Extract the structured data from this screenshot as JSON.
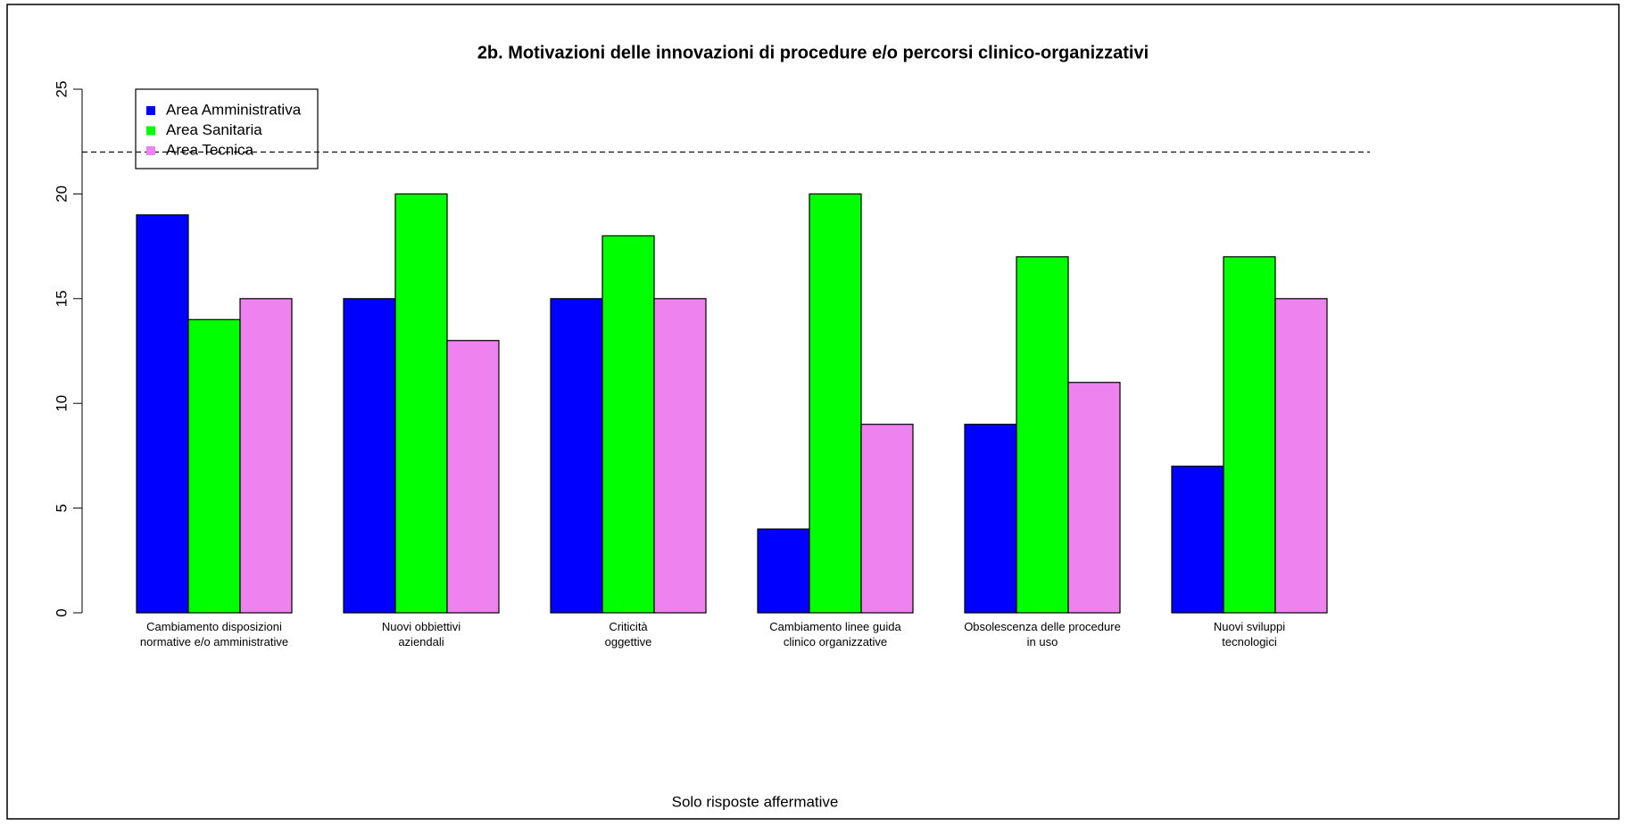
{
  "chart_data": {
    "type": "bar",
    "title": "2b. Motivazioni delle innovazioni di procedure e/o percorsi clinico-organizzativi",
    "x_label": "Solo risposte affermative",
    "categories": [
      "Cambiamento disposizioni\nnormative e/o amministrative",
      "Nuovi obbiettivi\naziendali",
      "Criticità\noggettive",
      "Cambiamento linee guida\nclinico organizzative",
      "Obsolescenza delle procedure\nin uso",
      "Nuovi sviluppi\ntecnologici"
    ],
    "series": [
      {
        "name": "Area Amministrativa",
        "color": "#0000ff",
        "values": [
          19,
          15,
          15,
          4,
          9,
          7
        ]
      },
      {
        "name": "Area Sanitaria",
        "color": "#00ff00",
        "values": [
          14,
          20,
          18,
          20,
          17,
          17
        ]
      },
      {
        "name": "Area Tecnica",
        "color": "#ee82ee",
        "values": [
          15,
          13,
          15,
          9,
          11,
          15
        ]
      }
    ],
    "ylim": [
      0,
      25
    ],
    "yticks": [
      0,
      5,
      10,
      15,
      20,
      25
    ],
    "hline": 22,
    "legend": "top-left"
  }
}
